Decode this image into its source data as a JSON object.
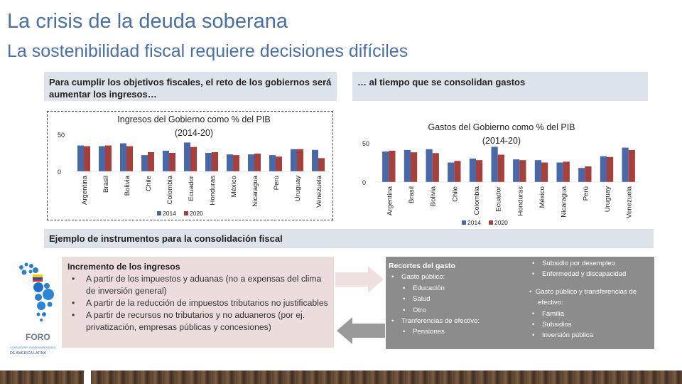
{
  "title": "La crisis de la deuda soberana",
  "subtitle": "La sostenibilidad fiscal requiere  decisiones difíciles",
  "left_header": "Para cumplir los objetivos fiscales, el reto de los gobiernos será aumentar los ingresos…",
  "right_header": "… al tiempo que se consolidan gastos",
  "examples_header": "Ejemplo de instrumentos para la consolidación fiscal",
  "increase": {
    "title": "Incremento de los ingresos",
    "items": [
      "A partir de los impuestos y aduanas (no a expensas del clima de inversión general)",
      "A partir de la reducción de impuestos tributarios no justificables",
      "A partir de recursos no tributarios  y no aduaneros (por ej. privatización, empresas públicas y concesiones)"
    ]
  },
  "cuts": {
    "title": "Recortes del gasto",
    "gasto_publico": "Gasto público:",
    "gasto_items": [
      "Educación",
      "Salud",
      "Otro"
    ],
    "transferencias": "Tranferencias de efectivo:",
    "transfer_items": [
      "Pensiones",
      "Subsidio por desempleo",
      "Enfermedad y discapacidad"
    ],
    "gasto_transfer": "Gasto público y transferencias de efectivo:",
    "gasto_transfer_items": [
      "Familia",
      "Subsidios",
      "Inversión pública"
    ]
  },
  "logo": {
    "name": "FORO",
    "line1": "CONTADORES GUBERNAMENTALES",
    "line2": "DE AMERICA LATINA"
  },
  "colors": {
    "s2014": "#4a67a8",
    "s2020": "#a5403d",
    "title": "#4a6fa5"
  },
  "chart_data": [
    {
      "type": "bar",
      "title": "Ingresos del Gobierno como % del PIB (2014-20)",
      "categories": [
        "Argentina",
        "Brasil",
        "Bolivia",
        "Chile",
        "Colombia",
        "Ecuador",
        "Honduras",
        "México",
        "Nicaragua",
        "Perú",
        "Uruguay",
        "Venezuela"
      ],
      "series": [
        {
          "name": "2014",
          "values": [
            35,
            34,
            38,
            22,
            28,
            39,
            25,
            23,
            23,
            22,
            30,
            29
          ]
        },
        {
          "name": "2020",
          "values": [
            34,
            35,
            34,
            26,
            25,
            33,
            26,
            22,
            24,
            20,
            30,
            18
          ]
        }
      ],
      "ylim": [
        0,
        50
      ],
      "yticks": [
        "0",
        "50"
      ],
      "legend": "bottom"
    },
    {
      "type": "bar",
      "title": "Gastos del Gobierno como % del PIB (2014-20)",
      "categories": [
        "Argentina",
        "Brasil",
        "Bolivia",
        "Chile",
        "Colombia",
        "Ecuador",
        "Honduras",
        "México",
        "Nicaragua",
        "Perú",
        "Uruguay",
        "Venezuela"
      ],
      "series": [
        {
          "name": "2014",
          "values": [
            39,
            41,
            42,
            25,
            30,
            45,
            29,
            28,
            25,
            18,
            33,
            44
          ]
        },
        {
          "name": "2020",
          "values": [
            40,
            38,
            37,
            27,
            28,
            35,
            28,
            25,
            26,
            20,
            32,
            41
          ]
        }
      ],
      "ylim": [
        0,
        50
      ],
      "yticks": [
        "0",
        "50"
      ],
      "legend": "bottom"
    }
  ]
}
